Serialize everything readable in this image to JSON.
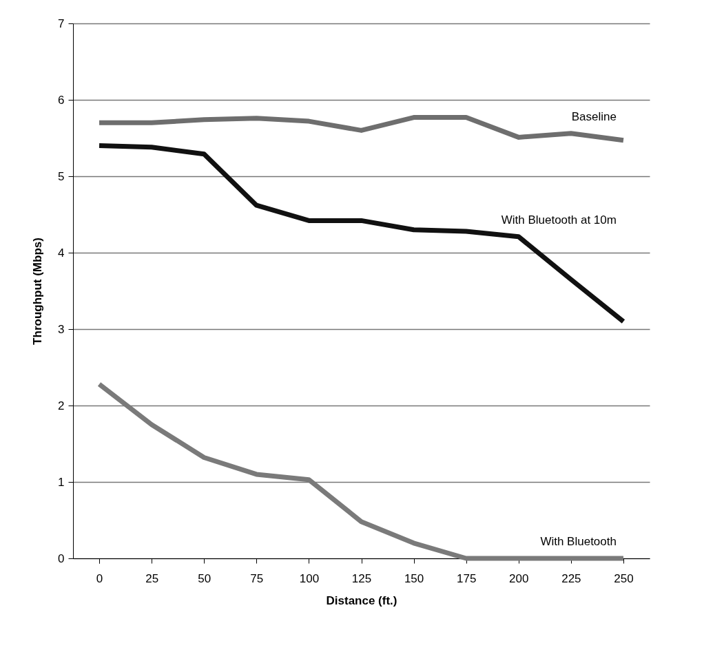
{
  "chart_data": {
    "type": "line",
    "xlabel": "Distance (ft.)",
    "ylabel": "Throughput (Mbps)",
    "categories": [
      "0",
      "25",
      "50",
      "75",
      "100",
      "125",
      "150",
      "175",
      "200",
      "225",
      "250"
    ],
    "ylim": [
      0,
      7
    ],
    "yticks": [
      0,
      1,
      2,
      3,
      4,
      5,
      6,
      7
    ],
    "grid": "y",
    "legend": false,
    "marker": "none",
    "line_style": "solid",
    "series": [
      {
        "name": "Baseline",
        "color": "#6e6e6e",
        "values": [
          5.7,
          5.7,
          5.74,
          5.76,
          5.72,
          5.6,
          5.77,
          5.77,
          5.51,
          5.56,
          5.47
        ]
      },
      {
        "name": "With Bluetooth at 10m",
        "color": "#111111",
        "values": [
          5.4,
          5.38,
          5.29,
          4.62,
          4.42,
          4.42,
          4.3,
          4.28,
          4.21,
          3.65,
          3.1
        ]
      },
      {
        "name": "With Bluetooth",
        "color": "#7a7a7a",
        "values": [
          2.28,
          1.75,
          1.32,
          1.1,
          1.03,
          0.48,
          0.2,
          0,
          0,
          0,
          0
        ]
      }
    ]
  }
}
